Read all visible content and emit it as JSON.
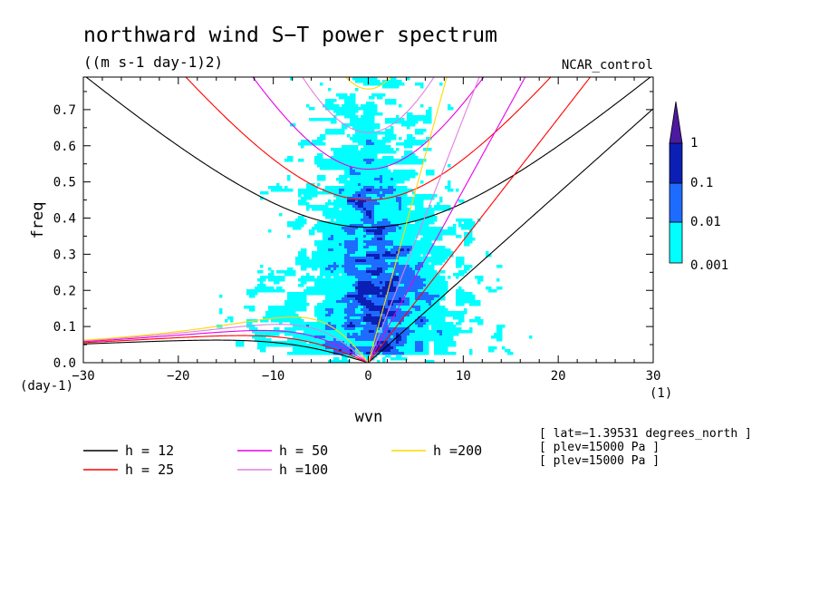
{
  "chart_data": {
    "type": "filled-contour",
    "title": "northward wind S−T power spectrum",
    "units": "((m s-1 day-1)2)",
    "dataset": "NCAR_control",
    "xlabel": "wvn",
    "ylabel": "freq",
    "x_units": "(1)",
    "y_units": "(day-1)",
    "xlim": [
      -30,
      30
    ],
    "ylim": [
      0,
      0.79
    ],
    "x_ticks": [
      -30,
      -20,
      -10,
      0,
      10,
      20,
      30
    ],
    "x_tick_labels": [
      "−30",
      "−20",
      "−10",
      "0",
      "10",
      "20",
      "30"
    ],
    "y_ticks": [
      0,
      0.1,
      0.2,
      0.3,
      0.4,
      0.5,
      0.6,
      0.7
    ],
    "y_tick_labels": [
      "0.0",
      "0.1",
      "0.2",
      "0.3",
      "0.4",
      "0.5",
      "0.6",
      "0.7"
    ],
    "colorbar": {
      "levels": [
        0.001,
        0.01,
        0.1,
        1
      ],
      "labels": [
        "0.001",
        "0.01",
        "0.1",
        "1"
      ],
      "colors": [
        "#00ffff",
        "#1e6cff",
        "#0b1fb4",
        "#4b1aa0"
      ]
    },
    "dispersion_curves": [
      {
        "name": "h = 12",
        "h": 12,
        "color": "#000000"
      },
      {
        "name": "h = 25",
        "h": 25,
        "color": "#ff0000"
      },
      {
        "name": "h = 50",
        "h": 50,
        "color": "#e800e8"
      },
      {
        "name": "h =100",
        "h": 100,
        "color": "#e080e0"
      },
      {
        "name": "h =200",
        "h": 200,
        "color": "#ffd800"
      }
    ],
    "info": [
      "[ lat=−1.39531 degrees_north ]",
      "[ plev=15000 Pa ]",
      "[ plev=15000 Pa ]"
    ]
  }
}
